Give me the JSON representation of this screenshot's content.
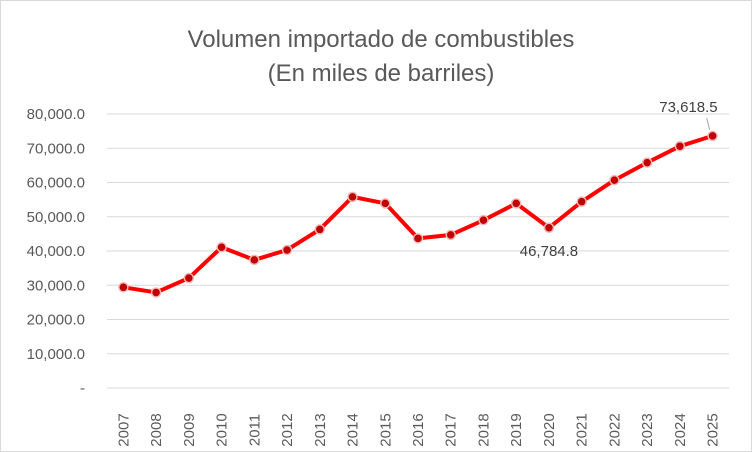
{
  "chart_data": {
    "type": "line",
    "title": "Volumen importado de combustibles",
    "subtitle": "(En miles de barriles)",
    "xlabel": "",
    "ylabel": "",
    "categories": [
      "2007",
      "2008",
      "2009",
      "2010",
      "2011",
      "2012",
      "2013",
      "2014",
      "2015",
      "2016",
      "2017",
      "2018",
      "2019",
      "2020",
      "2021",
      "2022",
      "2023",
      "2024",
      "2025"
    ],
    "series": [
      {
        "values": [
          29400,
          27900,
          32100,
          41100,
          37400,
          40300,
          46300,
          55800,
          53900,
          43700,
          44700,
          49000,
          53900,
          46784.8,
          54400,
          60700,
          65800,
          70600,
          73618.5
        ]
      }
    ],
    "ylim": [
      0,
      80000
    ],
    "y_ticks": [
      {
        "value": 0,
        "label": "-"
      },
      {
        "value": 10000,
        "label": "10,000.0"
      },
      {
        "value": 20000,
        "label": "20,000.0"
      },
      {
        "value": 30000,
        "label": "30,000.0"
      },
      {
        "value": 40000,
        "label": "40,000.0"
      },
      {
        "value": 50000,
        "label": "50,000.0"
      },
      {
        "value": 60000,
        "label": "60,000.0"
      },
      {
        "value": 70000,
        "label": "70,000.0"
      },
      {
        "value": 80000,
        "label": "80,000.0"
      }
    ],
    "data_labels": [
      {
        "index": 13,
        "label": "46,784.8",
        "position": "below"
      },
      {
        "index": 18,
        "label": "73,618.5",
        "position": "above-left"
      }
    ],
    "grid": true,
    "legend": "none",
    "colors": {
      "line": "#ff0000",
      "marker_fill": "#c00000",
      "marker_edge": "#f4b6b6",
      "grid": "#d9d9d9",
      "text": "#595959"
    }
  }
}
